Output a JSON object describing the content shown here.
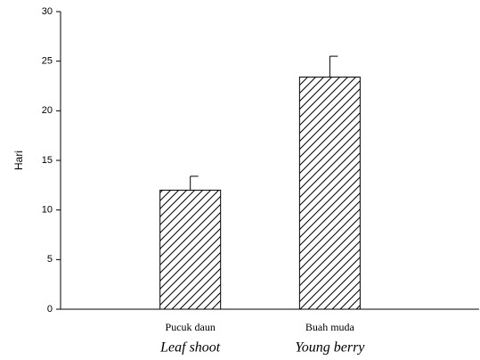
{
  "chart_data": {
    "type": "bar",
    "y_label": "Hari",
    "categories": [
      "Pucuk daun",
      "Buah muda"
    ],
    "category_translations": [
      "Leaf shoot",
      "Young berry"
    ],
    "values": [
      12.0,
      23.4
    ],
    "errors": [
      1.4,
      2.1
    ],
    "color": "#000000",
    "hatch": true,
    "ylim": [
      0,
      30
    ],
    "yticks": [
      0,
      5,
      10,
      15,
      20,
      25,
      30
    ],
    "grid": false
  }
}
